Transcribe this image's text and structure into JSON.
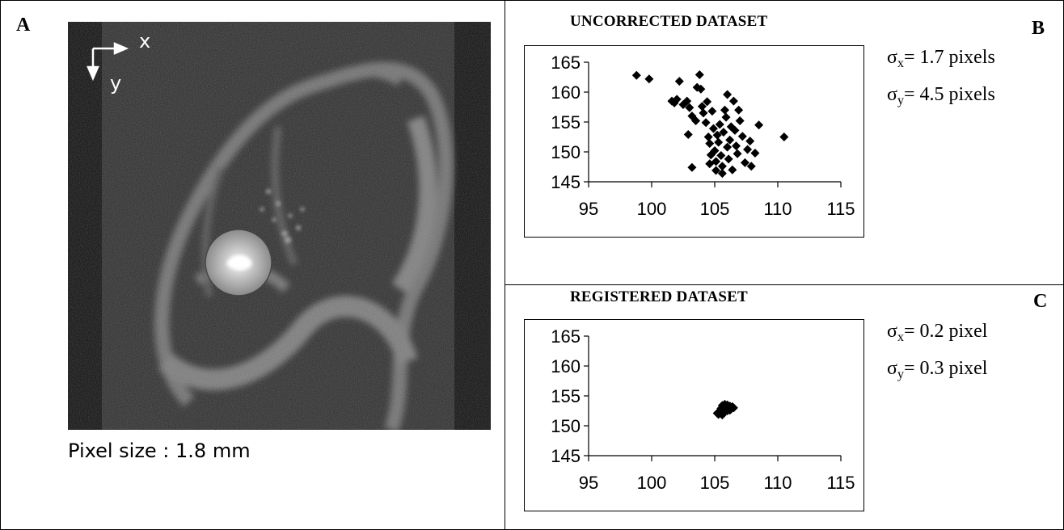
{
  "panels": {
    "a": {
      "letter": "A",
      "axis_x_label": "x",
      "axis_y_label": "y",
      "caption": "Pixel size : 1.8 mm"
    },
    "b": {
      "letter": "B",
      "title": "UNCORRECTED DATASET",
      "sigma_x_symbol": "σ",
      "sigma_x_sub": "x",
      "sigma_x_text": "= 1.7 pixels",
      "sigma_y_symbol": "σ",
      "sigma_y_sub": "y",
      "sigma_y_text": "= 4.5 pixels"
    },
    "c": {
      "letter": "C",
      "title": "REGISTERED DATASET",
      "sigma_x_symbol": "σ",
      "sigma_x_sub": "x",
      "sigma_x_text": "= 0.2 pixel",
      "sigma_y_symbol": "σ",
      "sigma_y_sub": "y",
      "sigma_y_text": "= 0.3 pixel"
    }
  },
  "chart_data": [
    {
      "type": "scatter",
      "title": "UNCORRECTED DATASET",
      "xlabel": "",
      "ylabel": "",
      "xlim": [
        95,
        115
      ],
      "ylim": [
        145,
        165
      ],
      "xticks": [
        95,
        100,
        105,
        110,
        115
      ],
      "yticks": [
        145,
        150,
        155,
        160,
        165
      ],
      "grid": false,
      "marker": "diamond",
      "marker_color": "#000000",
      "points": [
        [
          98.8,
          162.8
        ],
        [
          99.8,
          162.2
        ],
        [
          101.6,
          158.5
        ],
        [
          101.8,
          158.2
        ],
        [
          102.0,
          158.8
        ],
        [
          102.2,
          161.8
        ],
        [
          102.5,
          157.9
        ],
        [
          102.8,
          158.5
        ],
        [
          103.0,
          157.4
        ],
        [
          103.2,
          156.0
        ],
        [
          103.5,
          155.2
        ],
        [
          103.6,
          160.8
        ],
        [
          103.8,
          162.9
        ],
        [
          103.9,
          160.5
        ],
        [
          104.0,
          157.6
        ],
        [
          104.1,
          156.5
        ],
        [
          104.3,
          154.9
        ],
        [
          104.4,
          158.4
        ],
        [
          104.5,
          152.5
        ],
        [
          104.6,
          151.4
        ],
        [
          104.7,
          149.5
        ],
        [
          104.8,
          156.8
        ],
        [
          104.9,
          153.9
        ],
        [
          105.0,
          150.2
        ],
        [
          105.1,
          148.4
        ],
        [
          105.1,
          146.9
        ],
        [
          105.2,
          152.8
        ],
        [
          105.3,
          151.6
        ],
        [
          105.4,
          154.6
        ],
        [
          105.5,
          149.4
        ],
        [
          105.6,
          147.6
        ],
        [
          105.7,
          153.3
        ],
        [
          105.8,
          157.0
        ],
        [
          105.9,
          155.8
        ],
        [
          106.0,
          159.6
        ],
        [
          106.0,
          150.8
        ],
        [
          106.1,
          148.8
        ],
        [
          106.2,
          152.0
        ],
        [
          106.3,
          154.2
        ],
        [
          106.4,
          147.0
        ],
        [
          106.5,
          158.5
        ],
        [
          106.6,
          153.6
        ],
        [
          106.7,
          151.0
        ],
        [
          106.8,
          149.7
        ],
        [
          107.0,
          155.2
        ],
        [
          107.2,
          152.6
        ],
        [
          107.4,
          148.2
        ],
        [
          107.6,
          150.4
        ],
        [
          107.8,
          151.8
        ],
        [
          108.2,
          149.8
        ],
        [
          108.5,
          154.5
        ],
        [
          110.5,
          152.5
        ],
        [
          103.2,
          147.4
        ],
        [
          104.6,
          148.0
        ],
        [
          106.9,
          157.0
        ],
        [
          105.6,
          146.4
        ],
        [
          102.9,
          152.9
        ],
        [
          107.9,
          147.6
        ]
      ]
    },
    {
      "type": "scatter",
      "title": "REGISTERED DATASET",
      "xlabel": "",
      "ylabel": "",
      "xlim": [
        95,
        115
      ],
      "ylim": [
        145,
        165
      ],
      "xticks": [
        95,
        100,
        105,
        110,
        115
      ],
      "yticks": [
        145,
        150,
        155,
        160,
        165
      ],
      "grid": false,
      "marker": "diamond",
      "marker_color": "#000000",
      "points": [
        [
          105.2,
          152.1
        ],
        [
          105.4,
          152.4
        ],
        [
          105.5,
          152.9
        ],
        [
          105.6,
          153.4
        ],
        [
          105.7,
          152.2
        ],
        [
          105.8,
          152.7
        ],
        [
          105.9,
          153.1
        ],
        [
          106.0,
          152.5
        ],
        [
          106.1,
          152.9
        ],
        [
          106.2,
          153.3
        ],
        [
          106.3,
          152.8
        ],
        [
          106.4,
          153.2
        ],
        [
          106.5,
          153.0
        ],
        [
          105.6,
          151.8
        ],
        [
          105.3,
          151.9
        ],
        [
          106.0,
          153.5
        ],
        [
          105.8,
          153.6
        ],
        [
          106.2,
          152.6
        ]
      ]
    }
  ]
}
